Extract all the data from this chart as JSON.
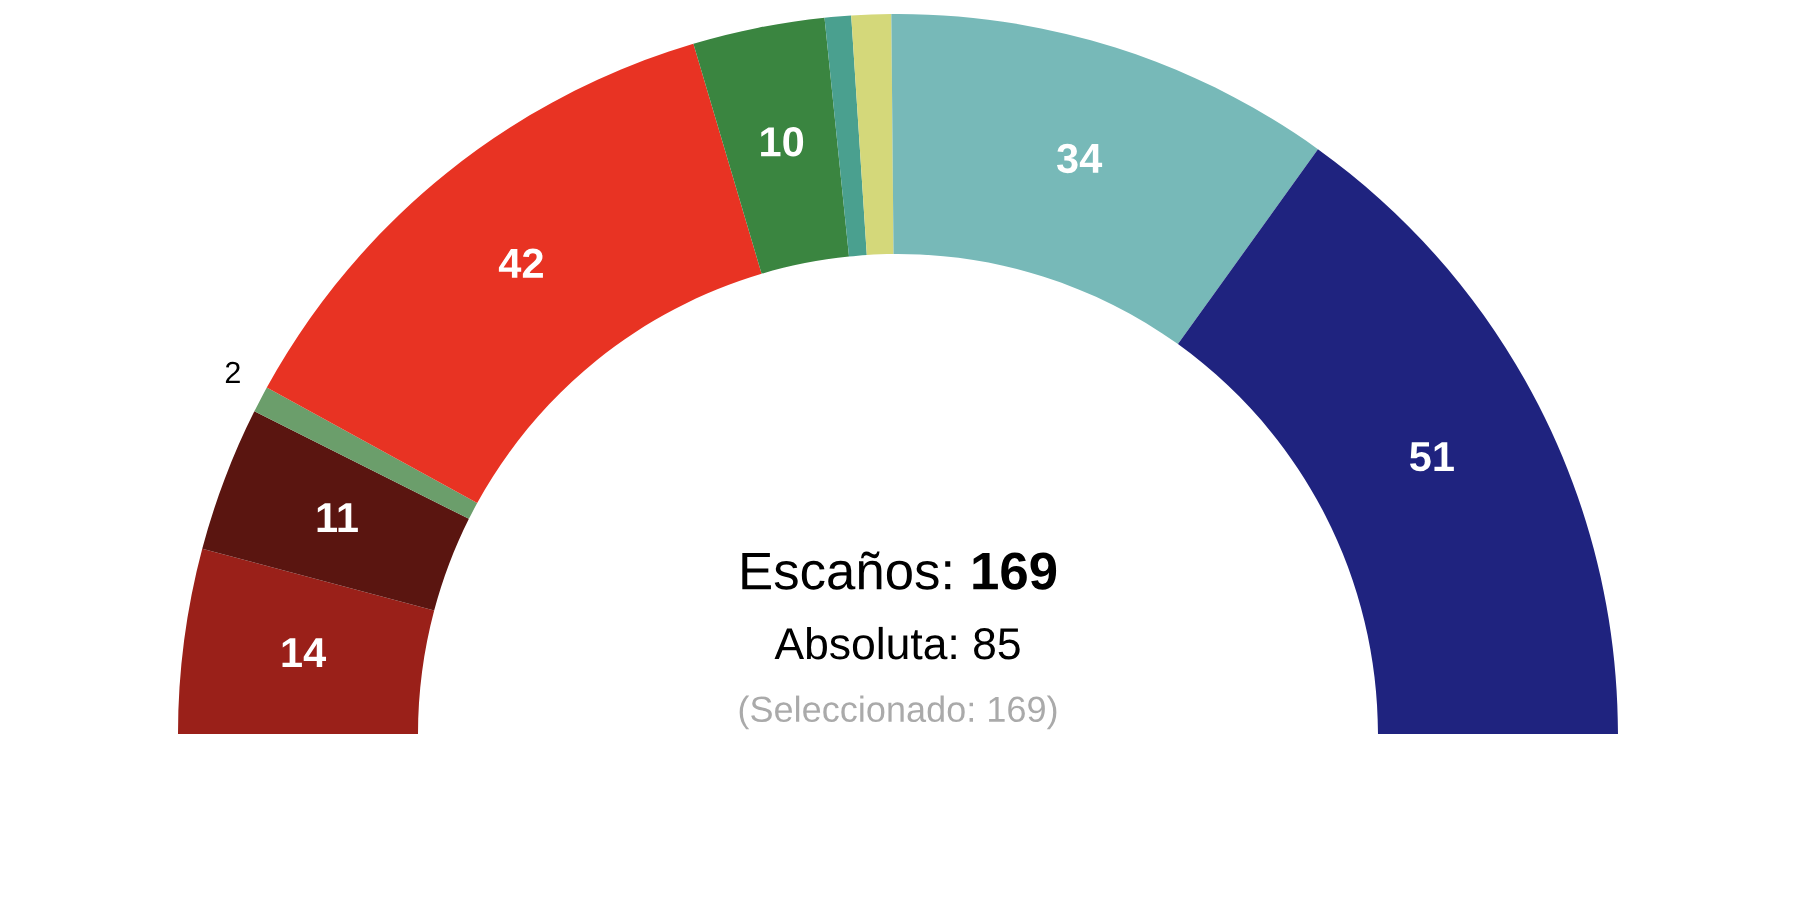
{
  "chart_data": {
    "type": "donut",
    "categories": [
      null,
      null,
      null,
      null,
      null,
      null,
      null,
      null,
      null
    ],
    "values": [
      14,
      11,
      2,
      42,
      10,
      2,
      3,
      34,
      51
    ],
    "value_labels": [
      "14",
      "11",
      "2",
      "42",
      "10",
      null,
      null,
      "34",
      "51"
    ],
    "colors": [
      "#9a2019",
      "#5a1510",
      "#6b9e6b",
      "#e83323",
      "#3a8540",
      "#4aa08f",
      "#d4d87a",
      "#77b9b8",
      "#1f237f"
    ],
    "annotations": [
      "Escaños: 169",
      "Absoluta: 85",
      "(Seleccionado: 169)"
    ]
  }
}
